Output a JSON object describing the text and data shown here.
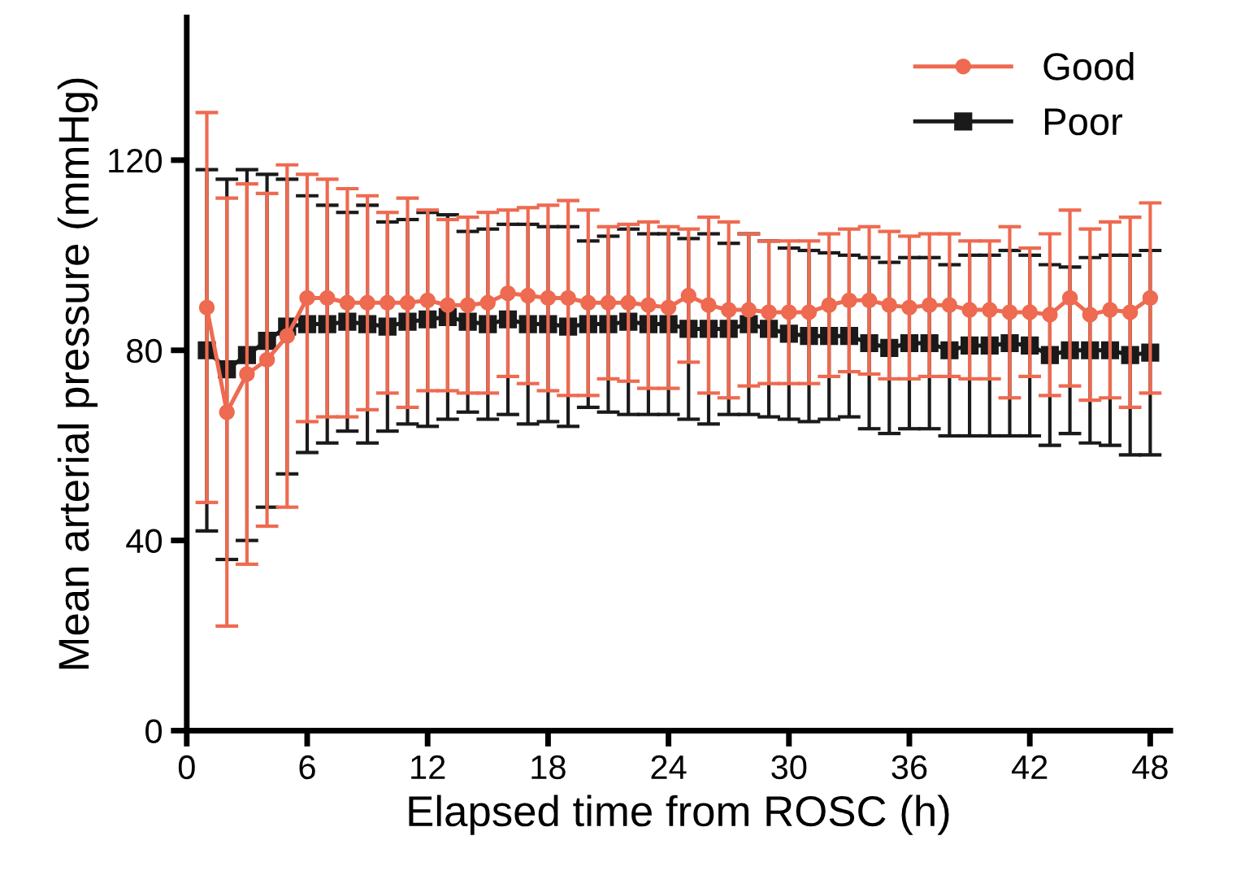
{
  "chart_data": {
    "type": "line",
    "xlabel": "Elapsed time from ROSC (h)",
    "ylabel": "Mean arterial pressure (mmHg)",
    "x": [
      1,
      2,
      3,
      4,
      5,
      6,
      7,
      8,
      9,
      10,
      11,
      12,
      13,
      14,
      15,
      16,
      17,
      18,
      19,
      20,
      21,
      22,
      23,
      24,
      25,
      26,
      27,
      28,
      29,
      30,
      31,
      32,
      33,
      34,
      35,
      36,
      37,
      38,
      39,
      40,
      41,
      42,
      43,
      44,
      45,
      46,
      47,
      48
    ],
    "series": [
      {
        "name": "Good",
        "color": "#ee6a50",
        "marker": "circle",
        "values": [
          89,
          67,
          75,
          78,
          83,
          91,
          91,
          90,
          90,
          90,
          90,
          90.5,
          89.5,
          89.5,
          90,
          92,
          91.5,
          91,
          91,
          90,
          90,
          90,
          89.5,
          89,
          91.5,
          89.5,
          88.5,
          88.5,
          88,
          88,
          88,
          89.5,
          90.5,
          90.5,
          89.5,
          89,
          89.5,
          89.5,
          88.5,
          88.5,
          88,
          88,
          87.5,
          91,
          87.5,
          88.5,
          88,
          91
        ],
        "errors": [
          41,
          45,
          40,
          35,
          36,
          26,
          25,
          24,
          22.5,
          19,
          22,
          19,
          18,
          18.5,
          19,
          17.5,
          18.5,
          19.5,
          20.5,
          19.5,
          16,
          16.5,
          17.5,
          17,
          14,
          18.5,
          18.5,
          16,
          15,
          15,
          15,
          15,
          15,
          15.5,
          15.5,
          15,
          15,
          15,
          14.5,
          14.5,
          18,
          13.5,
          17,
          18.5,
          18,
          18.5,
          20,
          20
        ]
      },
      {
        "name": "Poor",
        "color": "#1a1a1a",
        "marker": "square",
        "values": [
          80,
          76,
          79,
          82,
          85,
          85.5,
          85.5,
          86,
          85.5,
          85,
          86,
          86.5,
          87,
          86,
          85.5,
          86.5,
          85.5,
          85.5,
          85,
          85.5,
          85.5,
          86,
          85.5,
          85.5,
          84.5,
          84.5,
          84.5,
          85.5,
          84.5,
          83.5,
          83,
          83,
          83,
          81.5,
          80.5,
          81.5,
          81.5,
          80,
          81,
          81,
          81.5,
          81,
          79,
          80,
          80,
          80,
          79,
          79.5
        ],
        "errors": [
          38,
          40,
          39,
          35,
          31,
          27,
          25,
          23,
          25,
          22,
          21.5,
          22.5,
          21.5,
          19,
          20,
          20,
          21,
          20.5,
          21,
          17.5,
          18.5,
          19.5,
          19,
          19,
          19,
          20,
          18,
          19,
          18.5,
          18,
          18,
          17.5,
          17,
          18,
          18,
          18,
          18,
          18,
          19,
          19,
          19.5,
          19,
          19,
          17.5,
          19.5,
          20,
          21,
          21.5
        ]
      }
    ],
    "xlim": [
      0,
      49
    ],
    "xticks": [
      0,
      6,
      12,
      18,
      24,
      30,
      36,
      42,
      48
    ],
    "ylim": [
      0,
      150
    ],
    "yticks": [
      0,
      40,
      80,
      120
    ],
    "grid": false,
    "legend": "top right",
    "line_style": "solid"
  }
}
